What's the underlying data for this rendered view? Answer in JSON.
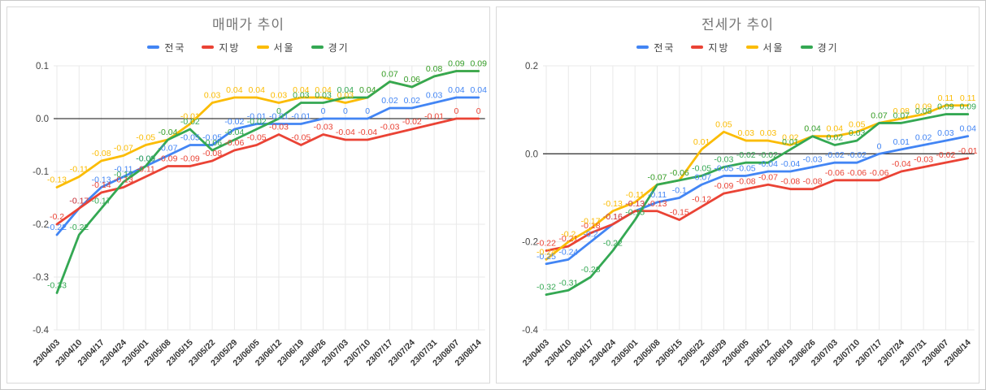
{
  "accent_colors": {
    "national": "#4285F4",
    "regional": "#EA4335",
    "seoul": "#FBBC04",
    "gyeonggi": "#34A853",
    "grid": "#e9e9e9",
    "zero_line": "#3d3d3d",
    "axis_text": "#444444",
    "date_text": "#333333",
    "title_text": "#757575"
  },
  "chart_data": [
    {
      "type": "line",
      "title": "매매가 추이",
      "legend_position": "top",
      "grid": true,
      "ylim": [
        -0.4,
        0.1
      ],
      "y_ticks": [
        0.1,
        0.0,
        -0.1,
        -0.2,
        -0.3,
        -0.4
      ],
      "categories": [
        "23/04/03",
        "23/04/10",
        "23/04/17",
        "23/04/24",
        "23/05/01",
        "23/05/08",
        "23/05/15",
        "23/05/22",
        "23/05/29",
        "23/06/05",
        "23/06/12",
        "23/06/19",
        "23/06/26",
        "23/07/03",
        "23/07/10",
        "23/07/17",
        "23/07/24",
        "23/07/31",
        "23/08/07",
        "23/08/14"
      ],
      "series": [
        {
          "name": "전국",
          "color": "#4285F4",
          "values": [
            -0.22,
            -0.17,
            -0.13,
            -0.11,
            -0.09,
            -0.07,
            -0.05,
            -0.05,
            -0.02,
            -0.01,
            -0.01,
            -0.01,
            0,
            0,
            0,
            0.02,
            0.02,
            0.03,
            0.04,
            0.04
          ]
        },
        {
          "name": "지방",
          "color": "#EA4335",
          "values": [
            -0.2,
            -0.17,
            -0.14,
            -0.13,
            -0.11,
            -0.09,
            -0.09,
            -0.08,
            -0.06,
            -0.05,
            -0.03,
            -0.05,
            -0.03,
            -0.04,
            -0.04,
            -0.03,
            -0.02,
            -0.01,
            0,
            0
          ]
        },
        {
          "name": "서울",
          "color": "#FBBC04",
          "values": [
            -0.13,
            -0.11,
            -0.08,
            -0.07,
            -0.05,
            -0.04,
            -0.01,
            0.03,
            0.04,
            0.04,
            0.03,
            0.04,
            0.04,
            0.03,
            0.04,
            0.07,
            0.06,
            0.08,
            0.09,
            0.09
          ]
        },
        {
          "name": "경기",
          "color": "#34A853",
          "values": [
            -0.33,
            -0.22,
            -0.17,
            -0.12,
            -0.09,
            -0.04,
            -0.02,
            -0.06,
            -0.04,
            -0.02,
            0,
            0.03,
            0.03,
            0.04,
            0.04,
            0.07,
            0.06,
            0.08,
            0.09,
            0.09
          ]
        }
      ]
    },
    {
      "type": "line",
      "title": "전세가 추이",
      "legend_position": "top",
      "grid": true,
      "ylim": [
        -0.4,
        0.2
      ],
      "y_ticks": [
        0.2,
        0.0,
        -0.2,
        -0.4
      ],
      "categories": [
        "23/04/03",
        "23/04/10",
        "23/04/17",
        "23/04/24",
        "23/05/01",
        "23/05/08",
        "23/05/15",
        "23/05/22",
        "23/05/29",
        "23/06/05",
        "23/06/12",
        "23/06/19",
        "23/06/26",
        "23/07/03",
        "23/07/10",
        "23/07/17",
        "23/07/24",
        "23/07/31",
        "23/08/07",
        "23/08/14"
      ],
      "series": [
        {
          "name": "전국",
          "color": "#4285F4",
          "values": [
            -0.25,
            -0.24,
            -0.2,
            -0.16,
            -0.13,
            -0.11,
            -0.1,
            -0.07,
            -0.05,
            -0.05,
            -0.04,
            -0.04,
            -0.03,
            -0.02,
            -0.02,
            0,
            0.01,
            0.02,
            0.03,
            0.04
          ]
        },
        {
          "name": "지방",
          "color": "#EA4335",
          "values": [
            -0.22,
            -0.21,
            -0.18,
            -0.16,
            -0.13,
            -0.13,
            -0.15,
            -0.12,
            -0.09,
            -0.08,
            -0.07,
            -0.08,
            -0.08,
            -0.06,
            -0.06,
            -0.06,
            -0.04,
            -0.03,
            -0.02,
            -0.01
          ]
        },
        {
          "name": "서울",
          "color": "#FBBC04",
          "values": [
            -0.24,
            -0.2,
            -0.17,
            -0.13,
            -0.11,
            -0.07,
            -0.06,
            0.01,
            0.05,
            0.03,
            0.03,
            0.02,
            0.04,
            0.04,
            0.05,
            0.07,
            0.08,
            0.09,
            0.11,
            0.11
          ]
        },
        {
          "name": "경기",
          "color": "#34A853",
          "values": [
            -0.32,
            -0.31,
            -0.28,
            -0.22,
            -0.15,
            -0.07,
            -0.06,
            -0.05,
            -0.03,
            -0.02,
            -0.02,
            0.01,
            0.04,
            0.02,
            0.03,
            0.07,
            0.07,
            0.08,
            0.09,
            0.09
          ]
        }
      ]
    }
  ]
}
